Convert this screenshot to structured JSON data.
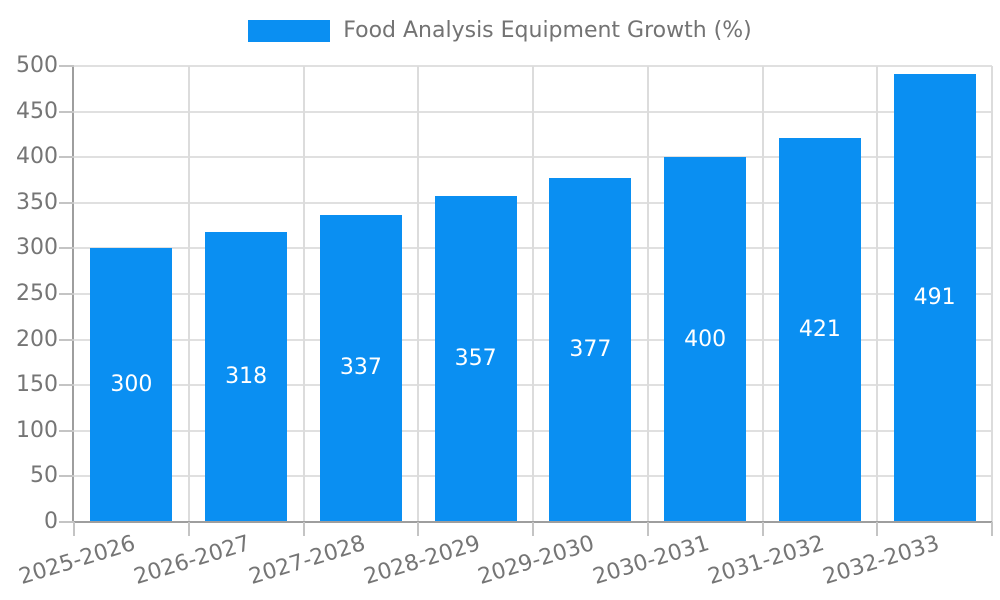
{
  "legend": {
    "label": "Food Analysis Equipment Growth (%)"
  },
  "chart_data": {
    "type": "bar",
    "title": "Food Analysis Equipment Growth (%)",
    "categories": [
      "2025-2026",
      "2026-2027",
      "2027-2028",
      "2028-2029",
      "2029-2030",
      "2030-2031",
      "2031-2032",
      "2032-2033"
    ],
    "values": [
      300,
      318,
      337,
      357,
      377,
      400,
      421,
      491
    ],
    "xlabel": "",
    "ylabel": "",
    "ylim": [
      0,
      500
    ],
    "ytick_step": 50,
    "grid": true,
    "legend_position": "top",
    "bar_color": "#0a8ff2",
    "value_label_color": "#ffffff",
    "axis_text_color": "#757575"
  }
}
